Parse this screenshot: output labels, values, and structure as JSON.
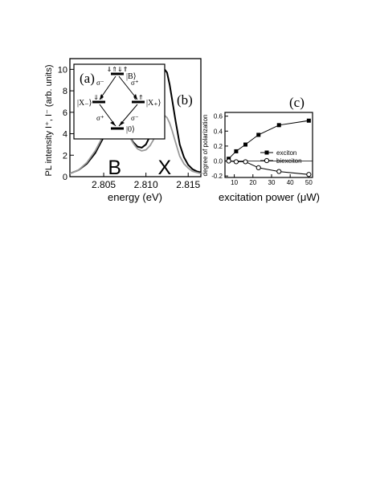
{
  "chart_data": [
    {
      "type": "line",
      "panel_label": "(b)",
      "xlabel": "energy (eV)",
      "ylabel": "PL intensity I⁺, I⁻ (arb. units)",
      "xlim": [
        2.801,
        2.8165
      ],
      "ylim": [
        0,
        11
      ],
      "xticks": [
        2.805,
        2.81,
        2.815
      ],
      "xtick_labels": [
        "2.805",
        "2.810",
        "2.815"
      ],
      "yticks": [
        0,
        2,
        4,
        6,
        8,
        10
      ],
      "ytick_labels": [
        "0",
        "2",
        "4",
        "6",
        "8",
        "10"
      ],
      "series": [
        {
          "color": "#000000",
          "x": [
            2.801,
            2.802,
            2.803,
            2.804,
            2.805,
            2.8055,
            2.806,
            2.8065,
            2.807,
            2.8075,
            2.808,
            2.8085,
            2.809,
            2.8095,
            2.81,
            2.8105,
            2.811,
            2.8113,
            2.8116,
            2.8119,
            2.8122,
            2.8125,
            2.8128,
            2.8131,
            2.8135,
            2.814,
            2.8145,
            2.815,
            2.8155,
            2.816,
            2.8165
          ],
          "y": [
            0.3,
            0.6,
            1.2,
            2.2,
            3.7,
            4.4,
            5.0,
            5.2,
            5.0,
            4.5,
            3.8,
            3.2,
            2.8,
            2.7,
            3.0,
            3.8,
            5.3,
            6.6,
            8.0,
            9.3,
            10.0,
            9.7,
            8.6,
            7.2,
            5.2,
            3.0,
            1.8,
            1.1,
            0.7,
            0.5,
            0.4
          ]
        },
        {
          "color": "#999999",
          "x": [
            2.801,
            2.802,
            2.803,
            2.804,
            2.805,
            2.8055,
            2.806,
            2.8065,
            2.807,
            2.8075,
            2.808,
            2.8085,
            2.809,
            2.8095,
            2.81,
            2.8105,
            2.811,
            2.8113,
            2.8116,
            2.8119,
            2.8122,
            2.8125,
            2.8128,
            2.8131,
            2.8135,
            2.814,
            2.8145,
            2.815,
            2.8155,
            2.816,
            2.8165
          ],
          "y": [
            0.3,
            0.6,
            1.3,
            2.4,
            3.9,
            4.6,
            5.2,
            5.4,
            5.2,
            4.6,
            3.8,
            3.1,
            2.6,
            2.4,
            2.5,
            2.9,
            3.6,
            4.3,
            5.0,
            5.5,
            5.7,
            5.5,
            5.0,
            4.3,
            3.2,
            1.9,
            1.2,
            0.8,
            0.5,
            0.4,
            0.3
          ]
        }
      ],
      "peak_labels": [
        {
          "text": "B",
          "x": 2.8063
        },
        {
          "text": "X",
          "x": 2.8122
        }
      ]
    },
    {
      "type": "line",
      "panel_label": "(c)",
      "xlabel": "excitation power (μW)",
      "ylabel": "degree of polarization",
      "xlim": [
        5,
        52
      ],
      "ylim": [
        -0.22,
        0.65
      ],
      "xticks": [
        10,
        20,
        30,
        40,
        50
      ],
      "xtick_labels": [
        "10",
        "20",
        "30",
        "40",
        "50"
      ],
      "yticks": [
        -0.2,
        0.0,
        0.2,
        0.4,
        0.6
      ],
      "ytick_labels": [
        "-0.2",
        "0.0",
        "0.2",
        "0.4",
        "0.6"
      ],
      "zero_line": true,
      "legend_position": "right",
      "series": [
        {
          "name": "exciton",
          "marker": "filled-square",
          "x": [
            7,
            11,
            16,
            23,
            34,
            50
          ],
          "y": [
            0.03,
            0.13,
            0.22,
            0.35,
            0.48,
            0.54
          ]
        },
        {
          "name": "biexciton",
          "marker": "open-circle",
          "x": [
            7,
            11,
            16,
            23,
            34,
            50
          ],
          "y": [
            0.0,
            -0.01,
            -0.01,
            -0.09,
            -0.14,
            -0.18
          ]
        }
      ]
    }
  ],
  "inset": {
    "label": "(a)",
    "state_B": "|B⟩",
    "state_XL": "|X₋⟩",
    "state_XR": "|X₊⟩",
    "state_0": "|0⟩",
    "sigma_minus": "σ⁻",
    "sigma_plus": "σ⁺",
    "spin_B": "⇓⇑⇓⇑",
    "spin_XL": "⇓⇑",
    "spin_XR": "⇓⇑"
  }
}
